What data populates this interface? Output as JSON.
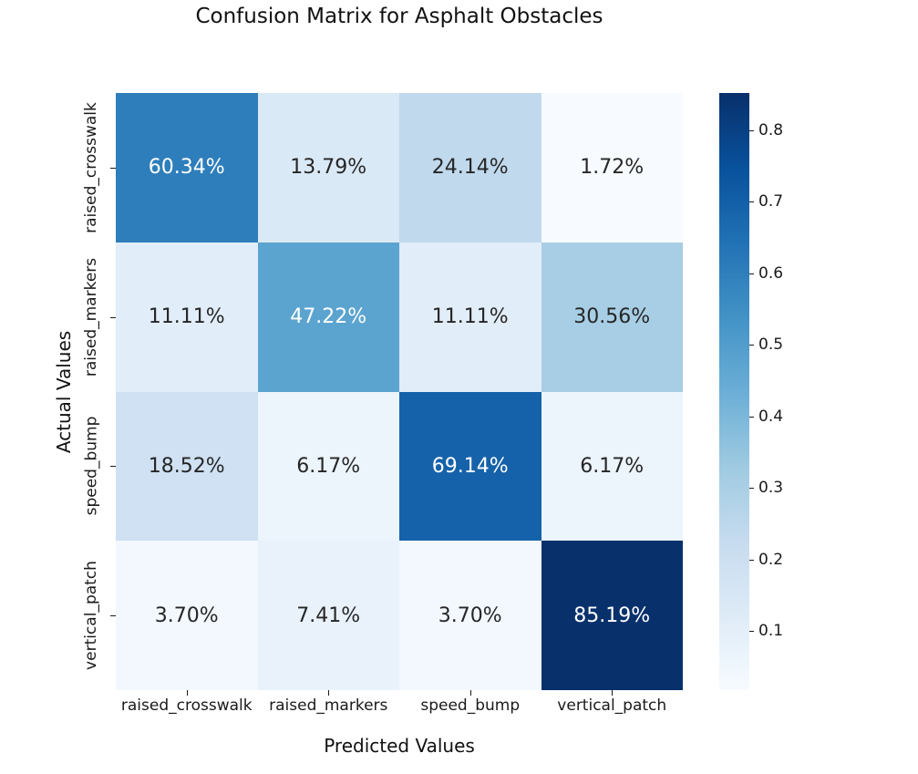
{
  "chart_data": {
    "type": "heatmap",
    "title": "Confusion Matrix for Asphalt Obstacles",
    "xlabel": "Predicted Values",
    "ylabel": "Actual Values",
    "x_categories": [
      "raised_crosswalk",
      "raised_markers",
      "speed_bump",
      "vertical_patch"
    ],
    "y_categories": [
      "raised_crosswalk",
      "raised_markers",
      "speed_bump",
      "vertical_patch"
    ],
    "values_percent": [
      [
        60.34,
        13.79,
        24.14,
        1.72
      ],
      [
        11.11,
        47.22,
        11.11,
        30.56
      ],
      [
        18.52,
        6.17,
        69.14,
        6.17
      ],
      [
        3.7,
        7.41,
        3.7,
        85.19
      ]
    ],
    "cell_labels": [
      [
        "60.34%",
        "13.79%",
        "24.14%",
        "1.72%"
      ],
      [
        "11.11%",
        "47.22%",
        "11.11%",
        "30.56%"
      ],
      [
        "18.52%",
        "6.17%",
        "69.14%",
        "6.17%"
      ],
      [
        "3.70%",
        "7.41%",
        "3.70%",
        "85.19%"
      ]
    ],
    "cell_colors": [
      [
        "#2e7ebb",
        "#dae9f6",
        "#c0d9ed",
        "#f7fbff"
      ],
      [
        "#e1edf8",
        "#5ca4d0",
        "#e1edf8",
        "#a7cee4"
      ],
      [
        "#cfe1f2",
        "#ecf4fc",
        "#1662aa",
        "#ecf4fc"
      ],
      [
        "#f2f8fe",
        "#e9f2fb",
        "#f2f8fe",
        "#08306b"
      ]
    ],
    "cell_text_colors": [
      [
        "#ffffff",
        "#262626",
        "#262626",
        "#262626"
      ],
      [
        "#262626",
        "#ffffff",
        "#262626",
        "#262626"
      ],
      [
        "#262626",
        "#262626",
        "#ffffff",
        "#262626"
      ],
      [
        "#262626",
        "#262626",
        "#262626",
        "#ffffff"
      ]
    ],
    "colormap_name": "Blues",
    "colorbar": {
      "vmin": 0.0172,
      "vmax": 0.8519,
      "ticks": [
        0.1,
        0.2,
        0.3,
        0.4,
        0.5,
        0.6,
        0.7,
        0.8
      ],
      "tick_labels": [
        "0.1",
        "0.2",
        "0.3",
        "0.4",
        "0.5",
        "0.6",
        "0.7",
        "0.8"
      ],
      "gradient_stops": [
        "#f7fbff",
        "#deebf7",
        "#c6dbef",
        "#9ecae1",
        "#6baed6",
        "#4292c6",
        "#2171b5",
        "#08519c",
        "#08306b"
      ],
      "position": "right"
    },
    "grid": false,
    "legend": false
  }
}
